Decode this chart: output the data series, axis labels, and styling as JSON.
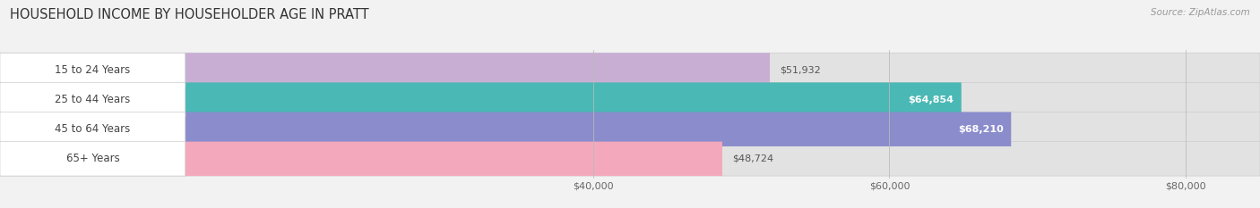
{
  "title": "HOUSEHOLD INCOME BY HOUSEHOLDER AGE IN PRATT",
  "source": "Source: ZipAtlas.com",
  "categories": [
    "15 to 24 Years",
    "25 to 44 Years",
    "45 to 64 Years",
    "65+ Years"
  ],
  "values": [
    51932,
    64854,
    68210,
    48724
  ],
  "bar_colors": [
    "#c9aed4",
    "#4ab8b4",
    "#8b8ccc",
    "#f4a8bc"
  ],
  "value_labels": [
    "$51,932",
    "$64,854",
    "$68,210",
    "$48,724"
  ],
  "value_label_inside": [
    false,
    true,
    true,
    false
  ],
  "xmin": 0,
  "xmax": 85000,
  "xticks": [
    40000,
    60000,
    80000
  ],
  "xtick_labels": [
    "$40,000",
    "$60,000",
    "$80,000"
  ],
  "background_color": "#f2f2f2",
  "bar_bg_color": "#e2e2e2",
  "title_fontsize": 10.5,
  "source_fontsize": 7.5,
  "tick_fontsize": 8,
  "label_fontsize": 8.5,
  "value_fontsize": 8
}
